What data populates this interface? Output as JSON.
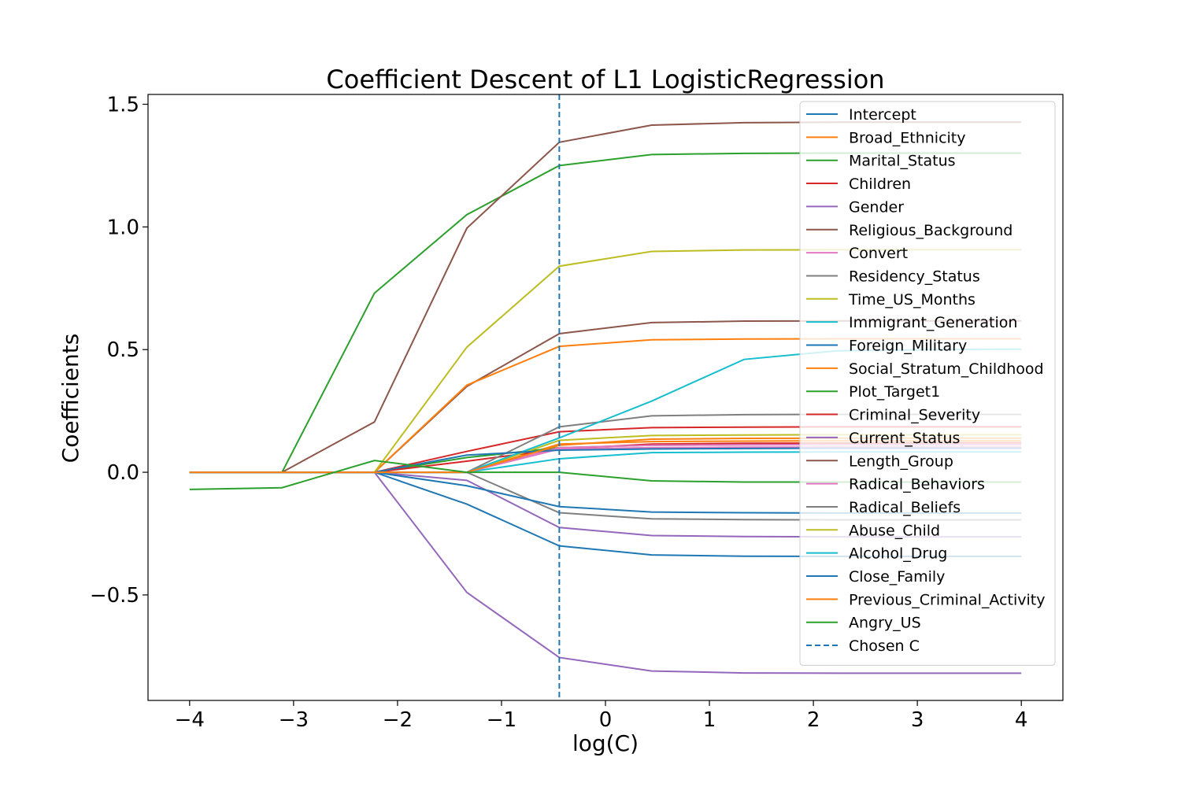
{
  "chart_data": {
    "type": "line",
    "title": "Coefficient Descent of L1 LogisticRegression",
    "xlabel": "log(C)",
    "ylabel": "Coefficients",
    "xlim": [
      -4.4,
      4.4
    ],
    "ylim": [
      -0.93,
      1.54
    ],
    "xticks": [
      -4,
      -3,
      -2,
      -1,
      0,
      1,
      2,
      3,
      4
    ],
    "xtick_labels": [
      "−4",
      "−3",
      "−2",
      "−1",
      "0",
      "1",
      "2",
      "3",
      "4"
    ],
    "yticks": [
      -0.5,
      0.0,
      0.5,
      1.0,
      1.5
    ],
    "ytick_labels": [
      "−0.5",
      "0.0",
      "0.5",
      "1.0",
      "1.5"
    ],
    "grid": false,
    "legend_position": "upper right",
    "x": [
      -4,
      -3.111,
      -2.222,
      -1.333,
      -0.444,
      0.444,
      1.333,
      2.222,
      3.111,
      4
    ],
    "series": [
      {
        "name": "Intercept",
        "color": "#1f77b4",
        "values": [
          0,
          0,
          0,
          -0.13,
          -0.3,
          -0.337,
          -0.342,
          -0.343,
          -0.343,
          -0.343
        ]
      },
      {
        "name": "Broad_Ethnicity",
        "color": "#ff7f0e",
        "values": [
          0,
          0,
          0,
          0,
          0.115,
          0.125,
          0.127,
          0.128,
          0.128,
          0.128
        ]
      },
      {
        "name": "Marital_Status",
        "color": "#2ca02c",
        "values": [
          0,
          0,
          0,
          0.06,
          0.1,
          0.11,
          0.112,
          0.113,
          0.113,
          0.113
        ]
      },
      {
        "name": "Children",
        "color": "#d62728",
        "values": [
          0,
          0,
          0,
          0.045,
          0.095,
          0.115,
          0.118,
          0.119,
          0.12,
          0.12
        ]
      },
      {
        "name": "Gender",
        "color": "#9467bd",
        "values": [
          0,
          0,
          0,
          -0.033,
          -0.225,
          -0.258,
          -0.262,
          -0.263,
          -0.263,
          -0.263
        ]
      },
      {
        "name": "Religious_Background",
        "color": "#8c564b",
        "values": [
          0,
          0,
          0,
          0.35,
          0.565,
          0.61,
          0.616,
          0.617,
          0.617,
          0.617
        ]
      },
      {
        "name": "Convert",
        "color": "#e377c2",
        "values": [
          0,
          0,
          0,
          0,
          0.1,
          0.11,
          0.112,
          0.113,
          0.113,
          0.113
        ]
      },
      {
        "name": "Residency_Status",
        "color": "#7f7f7f",
        "values": [
          0,
          0,
          0,
          0,
          -0.165,
          -0.19,
          -0.193,
          -0.194,
          -0.194,
          -0.194
        ]
      },
      {
        "name": "Time_US_Months",
        "color": "#bcbd22",
        "values": [
          0,
          0,
          0,
          0,
          0.13,
          0.15,
          0.152,
          0.153,
          0.153,
          0.153
        ]
      },
      {
        "name": "Immigrant_Generation",
        "color": "#17becf",
        "values": [
          0,
          0,
          0,
          0,
          0.055,
          0.08,
          0.082,
          0.083,
          0.083,
          0.083
        ]
      },
      {
        "name": "Foreign_Military",
        "color": "#1f77b4",
        "values": [
          0,
          0,
          0,
          -0.055,
          -0.14,
          -0.162,
          -0.165,
          -0.166,
          -0.166,
          -0.166
        ]
      },
      {
        "name": "Social_Stratum_Childhood",
        "color": "#ff7f0e",
        "values": [
          0,
          0,
          0,
          0.355,
          0.513,
          0.54,
          0.543,
          0.544,
          0.544,
          0.544
        ]
      },
      {
        "name": "Plot_Target1",
        "color": "#2ca02c",
        "values": [
          0,
          0,
          0.73,
          1.05,
          1.25,
          1.295,
          1.3,
          1.301,
          1.301,
          1.301
        ]
      },
      {
        "name": "Criminal_Severity",
        "color": "#d62728",
        "values": [
          0,
          0,
          0,
          0.085,
          0.165,
          0.182,
          0.184,
          0.185,
          0.185,
          0.185
        ]
      },
      {
        "name": "Current_Status",
        "color": "#9467bd",
        "values": [
          0,
          0,
          0,
          -0.49,
          -0.755,
          -0.81,
          -0.818,
          -0.819,
          -0.819,
          -0.819
        ]
      },
      {
        "name": "Length_Group",
        "color": "#8c564b",
        "values": [
          0,
          0,
          0.205,
          0.995,
          1.345,
          1.415,
          1.425,
          1.427,
          1.427,
          1.427
        ]
      },
      {
        "name": "Radical_Behaviors",
        "color": "#e377c2",
        "values": [
          0,
          0,
          0,
          0,
          0.095,
          0.1,
          0.102,
          0.103,
          0.103,
          0.103
        ]
      },
      {
        "name": "Radical_Beliefs",
        "color": "#7f7f7f",
        "values": [
          0,
          0,
          0,
          0,
          0.185,
          0.23,
          0.235,
          0.236,
          0.236,
          0.236
        ]
      },
      {
        "name": "Abuse_Child",
        "color": "#bcbd22",
        "values": [
          0,
          0,
          0,
          0.51,
          0.84,
          0.9,
          0.906,
          0.907,
          0.907,
          0.907
        ]
      },
      {
        "name": "Alcohol_Drug",
        "color": "#17becf",
        "values": [
          0,
          0,
          0,
          0,
          0.14,
          0.29,
          0.46,
          0.495,
          0.5,
          0.502
        ]
      },
      {
        "name": "Close_Family",
        "color": "#1f77b4",
        "values": [
          0,
          0,
          0,
          0.07,
          0.09,
          0.095,
          0.097,
          0.098,
          0.098,
          0.098
        ]
      },
      {
        "name": "Previous_Criminal_Activity",
        "color": "#ff7f0e",
        "values": [
          0,
          0,
          0,
          0,
          0.11,
          0.135,
          0.138,
          0.139,
          0.139,
          0.139
        ]
      },
      {
        "name": "Angry_US",
        "color": "#2ca02c",
        "values": [
          -0.07,
          -0.063,
          0.048,
          0,
          0,
          -0.035,
          -0.04,
          -0.04,
          -0.04,
          -0.04
        ]
      }
    ],
    "vline": {
      "name": "Chosen C",
      "x": -0.444,
      "color": "#1f77b4",
      "style": "dashed"
    }
  }
}
